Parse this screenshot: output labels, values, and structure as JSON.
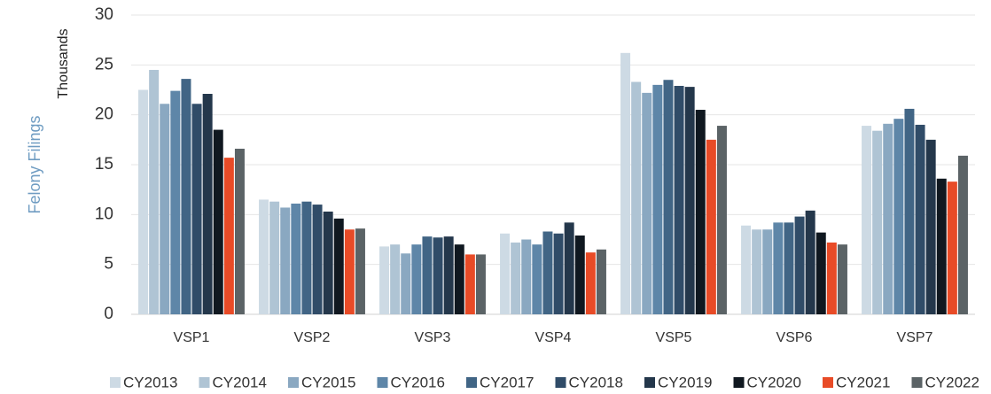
{
  "chart_data": {
    "type": "bar",
    "y_label": "Felony Filings",
    "unit_label": "Thousands",
    "categories": [
      "VSP1",
      "VSP2",
      "VSP3",
      "VSP4",
      "VSP5",
      "VSP6",
      "VSP7"
    ],
    "series": [
      {
        "name": "CY2013",
        "color": "#cddae4",
        "values": [
          22.5,
          11.5,
          6.8,
          8.1,
          26.2,
          8.9,
          18.9
        ]
      },
      {
        "name": "CY2014",
        "color": "#afc4d4",
        "values": [
          24.5,
          11.3,
          7.0,
          7.2,
          23.3,
          8.5,
          18.4
        ]
      },
      {
        "name": "CY2015",
        "color": "#8aa8c1",
        "values": [
          21.1,
          10.7,
          6.1,
          7.5,
          22.2,
          8.5,
          19.1
        ]
      },
      {
        "name": "CY2016",
        "color": "#5e86a8",
        "values": [
          22.4,
          11.1,
          7.0,
          7.0,
          23.0,
          9.2,
          19.6
        ]
      },
      {
        "name": "CY2017",
        "color": "#416585",
        "values": [
          23.6,
          11.3,
          7.8,
          8.3,
          23.5,
          9.2,
          20.6
        ]
      },
      {
        "name": "CY2018",
        "color": "#304c68",
        "values": [
          21.1,
          11.0,
          7.7,
          8.1,
          22.9,
          9.8,
          19.0
        ]
      },
      {
        "name": "CY2019",
        "color": "#24374b",
        "values": [
          22.1,
          10.3,
          7.8,
          9.2,
          22.8,
          10.4,
          17.5
        ]
      },
      {
        "name": "CY2020",
        "color": "#101820",
        "values": [
          18.5,
          9.6,
          7.0,
          7.9,
          20.5,
          8.2,
          13.6
        ]
      },
      {
        "name": "CY2021",
        "color": "#e84b27",
        "values": [
          15.7,
          8.5,
          6.0,
          6.2,
          17.5,
          7.2,
          13.3
        ]
      },
      {
        "name": "CY2022",
        "color": "#5b6366",
        "values": [
          16.6,
          8.6,
          6.0,
          6.5,
          18.9,
          7.0,
          15.9
        ]
      }
    ],
    "ylim": [
      0,
      30
    ],
    "yticks": [
      0,
      5,
      10,
      15,
      20,
      25,
      30
    ],
    "grid": true
  }
}
